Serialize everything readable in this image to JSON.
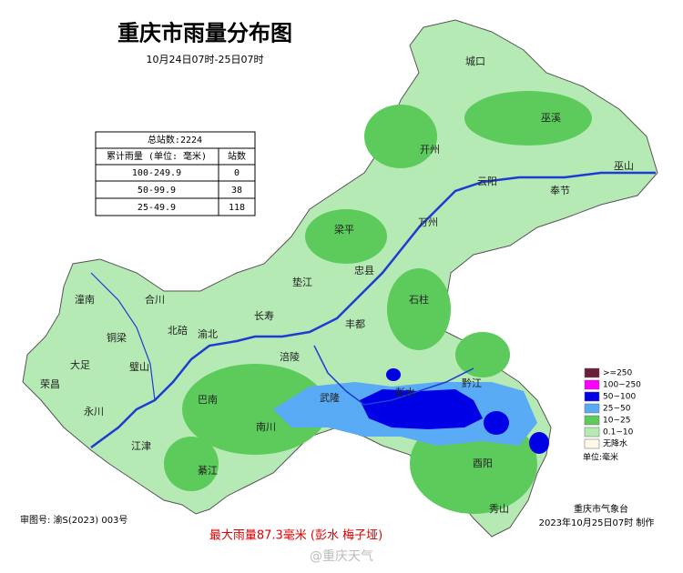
{
  "header": {
    "title": "重庆市雨量分布图",
    "subtitle": "10月24日07时-25日07时"
  },
  "table": {
    "total": "总站数:2224",
    "columns": [
      "累计雨量 (单位: 毫米)",
      "站数"
    ],
    "rows": [
      [
        "100-249.9",
        "0"
      ],
      [
        "50-99.9",
        "38"
      ],
      [
        "25-49.9",
        "118"
      ]
    ]
  },
  "map_labels": [
    "城口",
    "巫溪",
    "开州",
    "巫山",
    "云阳",
    "奉节",
    "万州",
    "梁平",
    "忠县",
    "石柱",
    "垫江",
    "长寿",
    "丰都",
    "潼南",
    "合川",
    "北碚",
    "渝北",
    "铜梁",
    "璧山",
    "大足",
    "荣昌",
    "永川",
    "江津",
    "巴南",
    "南川",
    "綦江",
    "涪陵",
    "武隆",
    "彭水",
    "黔江",
    "酉阳",
    "秀山"
  ],
  "legend": {
    "items": [
      {
        "label": ">=250",
        "color": "#6b1e3b"
      },
      {
        "label": "100~250",
        "color": "#ff00ff"
      },
      {
        "label": "50~100",
        "color": "#0000e6"
      },
      {
        "label": "25~50",
        "color": "#5aabf5"
      },
      {
        "label": "10~25",
        "color": "#5ccb5c"
      },
      {
        "label": "0.1~10",
        "color": "#b5eab5"
      },
      {
        "label": "无降水",
        "color": "#fff8e8"
      }
    ],
    "unit": "单位:毫米"
  },
  "footer": {
    "approval": "审图号: 渝S(2023) 003号",
    "max_rain": "最大雨量87.3毫米 (彭水 梅子垭)",
    "agency": "重庆市气象台",
    "made": "2023年10月25日07时 制作",
    "watermark": "@重庆天气"
  }
}
